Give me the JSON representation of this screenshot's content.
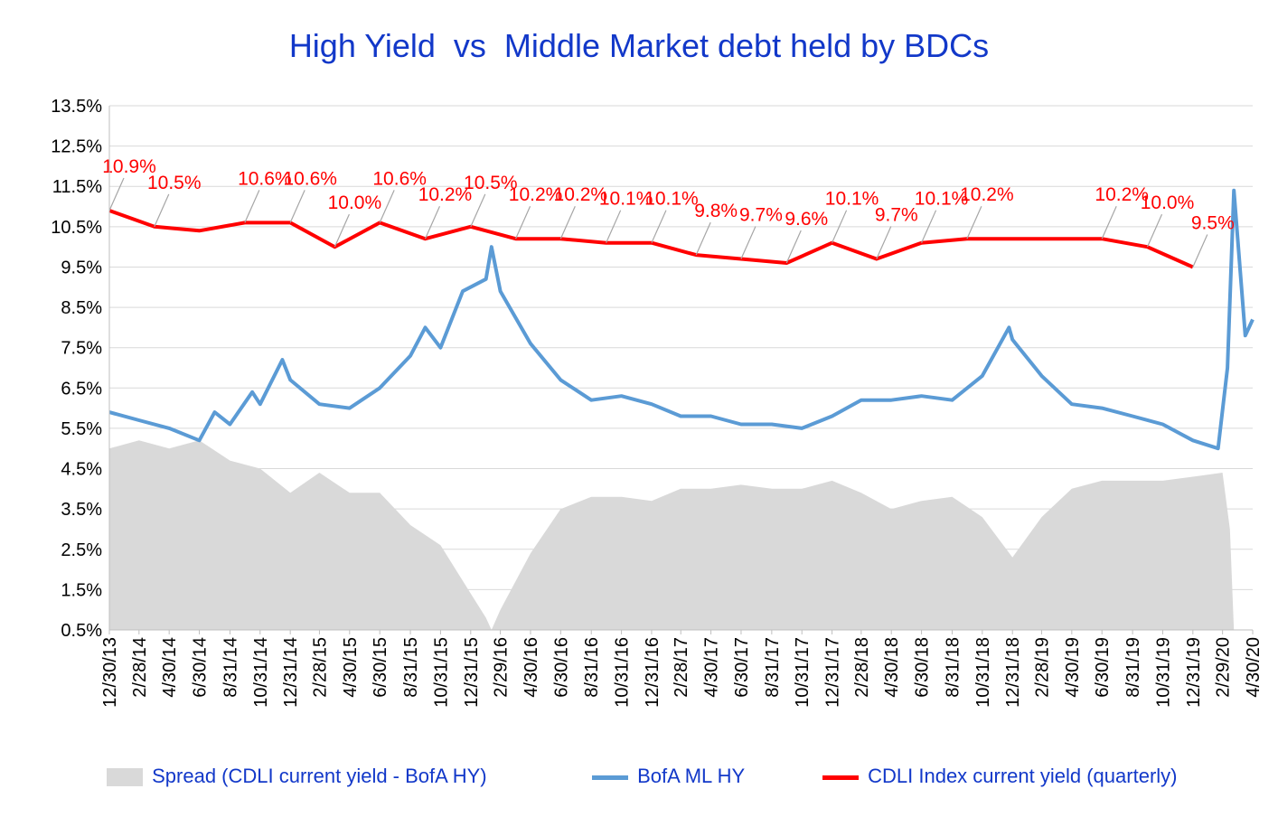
{
  "chart_data": {
    "type": "line",
    "title": "High Yield  vs  Middle Market debt held by BDCs",
    "y_tick_labels": [
      "13.5%",
      "12.5%",
      "11.5%",
      "10.5%",
      "9.5%",
      "8.5%",
      "7.5%",
      "6.5%",
      "5.5%",
      "4.5%",
      "3.5%",
      "2.5%",
      "1.5%",
      "0.5%"
    ],
    "ylim": [
      0.5,
      13.5
    ],
    "x_tick_labels": [
      "12/30/13",
      "2/28/14",
      "4/30/14",
      "6/30/14",
      "8/31/14",
      "10/31/14",
      "12/31/14",
      "2/28/15",
      "4/30/15",
      "6/30/15",
      "8/31/15",
      "10/31/15",
      "12/31/15",
      "2/29/16",
      "4/30/16",
      "6/30/16",
      "8/31/16",
      "10/31/16",
      "12/31/16",
      "2/28/17",
      "4/30/17",
      "6/30/17",
      "8/31/17",
      "10/31/17",
      "12/31/17",
      "2/28/18",
      "4/30/18",
      "6/30/18",
      "8/31/18",
      "10/31/18",
      "12/31/18",
      "2/28/19",
      "4/30/19",
      "6/30/19",
      "8/31/19",
      "10/31/19",
      "12/31/19",
      "2/29/20",
      "4/30/20"
    ],
    "xlim": [
      "12/30/13",
      "4/30/20"
    ],
    "grid": true,
    "legend_position": "bottom",
    "series": [
      {
        "name": "Spread (CDLI current yield - BofA HY)",
        "type": "area",
        "color": "#d9d9d9",
        "points": [
          [
            "12/30/13",
            5.0
          ],
          [
            "2/28/14",
            5.2
          ],
          [
            "4/30/14",
            5.0
          ],
          [
            "6/30/14",
            5.2
          ],
          [
            "8/31/14",
            4.7
          ],
          [
            "10/31/14",
            4.5
          ],
          [
            "12/31/14",
            3.9
          ],
          [
            "2/28/15",
            4.4
          ],
          [
            "4/30/15",
            3.9
          ],
          [
            "6/30/15",
            3.9
          ],
          [
            "8/31/15",
            3.1
          ],
          [
            "10/31/15",
            2.6
          ],
          [
            "12/31/15",
            1.4
          ],
          [
            "1/31/16",
            0.8
          ],
          [
            "2/11/16",
            0.5
          ],
          [
            "2/29/16",
            1.0
          ],
          [
            "4/30/16",
            2.4
          ],
          [
            "6/30/16",
            3.5
          ],
          [
            "8/31/16",
            3.8
          ],
          [
            "10/31/16",
            3.8
          ],
          [
            "12/31/16",
            3.7
          ],
          [
            "2/28/17",
            4.0
          ],
          [
            "4/30/17",
            4.0
          ],
          [
            "6/30/17",
            4.1
          ],
          [
            "8/31/17",
            4.0
          ],
          [
            "10/31/17",
            4.0
          ],
          [
            "12/31/17",
            4.2
          ],
          [
            "2/28/18",
            3.9
          ],
          [
            "4/30/18",
            3.5
          ],
          [
            "6/30/18",
            3.7
          ],
          [
            "8/31/18",
            3.8
          ],
          [
            "10/31/18",
            3.3
          ],
          [
            "12/31/18",
            2.3
          ],
          [
            "2/28/19",
            3.3
          ],
          [
            "4/30/19",
            4.0
          ],
          [
            "6/30/19",
            4.2
          ],
          [
            "8/31/19",
            4.2
          ],
          [
            "10/31/19",
            4.2
          ],
          [
            "12/31/19",
            4.3
          ],
          [
            "2/29/20",
            4.4
          ],
          [
            "3/15/20",
            3.0
          ],
          [
            "3/23/20",
            0.5
          ],
          [
            "4/30/20",
            0.5
          ]
        ]
      },
      {
        "name": "BofA ML HY",
        "type": "line",
        "color": "#5b9bd5",
        "points": [
          [
            "12/30/13",
            5.9
          ],
          [
            "2/28/14",
            5.7
          ],
          [
            "4/30/14",
            5.5
          ],
          [
            "6/30/14",
            5.2
          ],
          [
            "7/31/14",
            5.9
          ],
          [
            "8/31/14",
            5.6
          ],
          [
            "10/15/14",
            6.4
          ],
          [
            "10/31/14",
            6.1
          ],
          [
            "12/15/14",
            7.2
          ],
          [
            "12/31/14",
            6.7
          ],
          [
            "2/28/15",
            6.1
          ],
          [
            "4/30/15",
            6.0
          ],
          [
            "6/30/15",
            6.5
          ],
          [
            "8/31/15",
            7.3
          ],
          [
            "9/30/15",
            8.0
          ],
          [
            "10/31/15",
            7.5
          ],
          [
            "12/15/15",
            8.9
          ],
          [
            "1/31/16",
            9.2
          ],
          [
            "2/11/16",
            10.0
          ],
          [
            "2/29/16",
            8.9
          ],
          [
            "4/30/16",
            7.6
          ],
          [
            "6/30/16",
            6.7
          ],
          [
            "8/31/16",
            6.2
          ],
          [
            "10/31/16",
            6.3
          ],
          [
            "12/31/16",
            6.1
          ],
          [
            "2/28/17",
            5.8
          ],
          [
            "4/30/17",
            5.8
          ],
          [
            "6/30/17",
            5.6
          ],
          [
            "8/31/17",
            5.6
          ],
          [
            "10/31/17",
            5.5
          ],
          [
            "12/31/17",
            5.8
          ],
          [
            "2/28/18",
            6.2
          ],
          [
            "4/30/18",
            6.2
          ],
          [
            "6/30/18",
            6.3
          ],
          [
            "8/31/18",
            6.2
          ],
          [
            "10/31/18",
            6.8
          ],
          [
            "12/24/18",
            8.0
          ],
          [
            "12/31/18",
            7.7
          ],
          [
            "2/28/19",
            6.8
          ],
          [
            "4/30/19",
            6.1
          ],
          [
            "6/30/19",
            6.0
          ],
          [
            "8/31/19",
            5.8
          ],
          [
            "10/31/19",
            5.6
          ],
          [
            "12/31/19",
            5.2
          ],
          [
            "2/20/20",
            5.0
          ],
          [
            "3/10/20",
            7.0
          ],
          [
            "3/23/20",
            11.4
          ],
          [
            "4/15/20",
            7.8
          ],
          [
            "4/30/20",
            8.2
          ]
        ]
      },
      {
        "name": "CDLI Index current yield (quarterly)",
        "type": "line",
        "color": "#ff0000",
        "points": [
          [
            "12/30/13",
            10.9
          ],
          [
            "3/31/14",
            10.5
          ],
          [
            "6/30/14",
            10.4
          ],
          [
            "9/30/14",
            10.6
          ],
          [
            "12/31/14",
            10.6
          ],
          [
            "3/31/15",
            10.0
          ],
          [
            "6/30/15",
            10.6
          ],
          [
            "9/30/15",
            10.2
          ],
          [
            "12/31/15",
            10.5
          ],
          [
            "3/31/16",
            10.2
          ],
          [
            "6/30/16",
            10.2
          ],
          [
            "9/30/16",
            10.1
          ],
          [
            "12/31/16",
            10.1
          ],
          [
            "3/31/17",
            9.8
          ],
          [
            "6/30/17",
            9.7
          ],
          [
            "9/30/17",
            9.6
          ],
          [
            "12/31/17",
            10.1
          ],
          [
            "3/31/18",
            9.7
          ],
          [
            "6/30/18",
            10.1
          ],
          [
            "9/30/18",
            10.2
          ],
          [
            "12/31/18",
            10.2
          ],
          [
            "3/31/19",
            10.2
          ],
          [
            "6/30/19",
            10.2
          ],
          [
            "9/30/19",
            10.0
          ],
          [
            "12/31/19",
            9.5
          ]
        ],
        "data_labels": [
          "10.9%",
          "10.5%",
          "10.6%",
          "10.6%",
          "10.0%",
          "10.6%",
          "10.2%",
          "10.5%",
          "10.2%",
          "10.2%",
          "10.1%",
          "10.1%",
          "9.8%",
          "9.7%",
          "9.6%",
          "10.1%",
          "9.7%",
          "10.1%",
          "10.2%",
          "10.2%",
          "10.0%",
          "9.5%"
        ],
        "labeled_point_dates": [
          "12/30/13",
          "3/31/14",
          "9/30/14",
          "12/31/14",
          "3/31/15",
          "6/30/15",
          "9/30/15",
          "12/31/15",
          "3/31/16",
          "6/30/16",
          "9/30/16",
          "12/31/16",
          "3/31/17",
          "6/30/17",
          "9/30/17",
          "12/31/17",
          "3/31/18",
          "6/30/18",
          "9/30/18",
          "6/30/19",
          "9/30/19",
          "12/31/19"
        ]
      }
    ]
  },
  "colors": {
    "title": "#1238c9",
    "legend_text": "#1238c9",
    "data_label": "#ff0000",
    "gridline": "#d9d9d9",
    "axis_text": "#000000"
  }
}
